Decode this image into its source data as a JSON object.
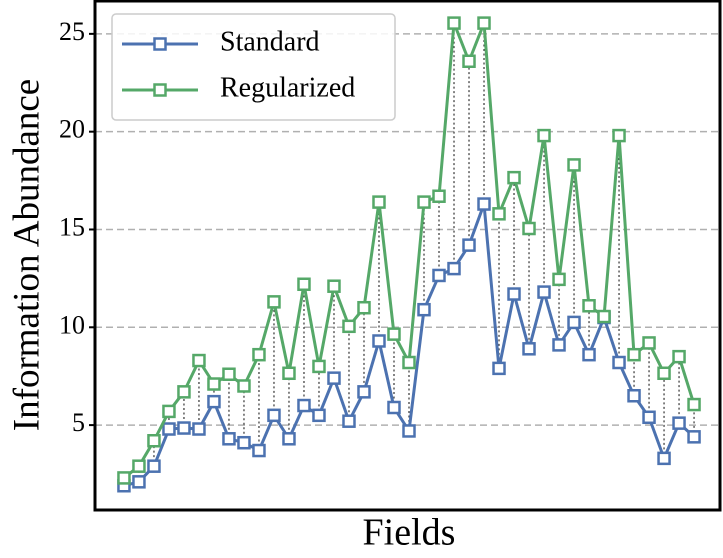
{
  "chart_data": {
    "type": "line",
    "xlabel": "Fields",
    "ylabel": "Information Abundance",
    "x": [
      0,
      1,
      2,
      3,
      4,
      5,
      6,
      7,
      8,
      9,
      10,
      11,
      12,
      13,
      14,
      15,
      16,
      17,
      18,
      19,
      20,
      21,
      22,
      23,
      24,
      25,
      26,
      27,
      28,
      29,
      30,
      31,
      32,
      33,
      34,
      35,
      36,
      37,
      38
    ],
    "series": [
      {
        "name": "Standard",
        "color": "#4c72b0",
        "values": [
          1.9,
          2.1,
          2.9,
          4.8,
          4.85,
          4.8,
          6.2,
          4.3,
          4.1,
          3.7,
          5.5,
          4.3,
          6.0,
          5.5,
          7.4,
          5.2,
          6.7,
          9.3,
          5.9,
          4.7,
          10.9,
          12.65,
          13.0,
          14.2,
          16.3,
          7.9,
          11.7,
          8.9,
          11.8,
          9.1,
          10.25,
          8.6,
          10.5,
          8.2,
          6.5,
          5.4,
          3.3,
          5.1,
          4.4
        ]
      },
      {
        "name": "Regularized",
        "color": "#55a868",
        "values": [
          2.3,
          2.9,
          4.2,
          5.7,
          6.7,
          8.3,
          7.1,
          7.6,
          7.0,
          8.6,
          11.3,
          7.65,
          12.2,
          8.0,
          12.1,
          10.05,
          11.0,
          16.4,
          9.65,
          8.2,
          16.4,
          16.7,
          25.55,
          23.6,
          25.55,
          15.8,
          17.65,
          15.05,
          19.8,
          12.45,
          18.3,
          11.1,
          10.55,
          19.8,
          8.6,
          9.2,
          7.65,
          8.5,
          6.05
        ]
      }
    ],
    "xlim": [
      -1.93,
      39.73
    ],
    "ylim": [
      0.66,
      26.68
    ],
    "yticks": [
      5,
      10,
      15,
      20,
      25
    ],
    "grid": true,
    "legend": "upper left"
  }
}
